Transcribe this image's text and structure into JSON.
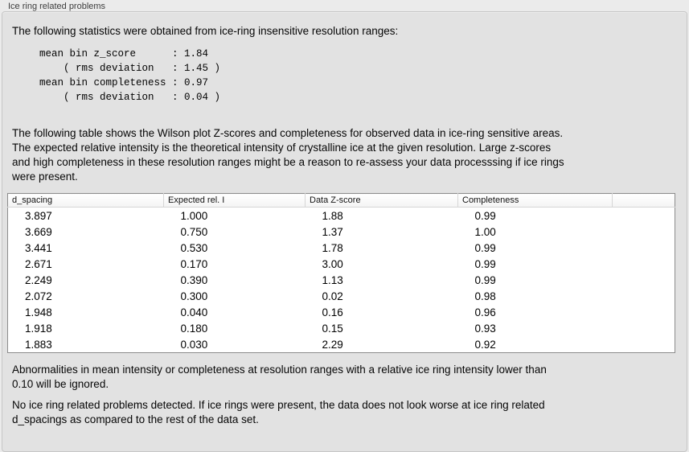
{
  "panel": {
    "title": "Ice ring related problems"
  },
  "intro": {
    "text": "The following statistics were obtained from ice-ring insensitive resolution ranges:",
    "stats_block": "mean bin z_score      : 1.84\n    ( rms deviation   : 1.45 )\nmean bin completeness : 0.97\n    ( rms deviation   : 0.04 )"
  },
  "description": "The following table shows the Wilson plot Z-scores and completeness for observed data in ice-ring sensitive areas.\nThe expected relative intensity is the theoretical intensity of crystalline ice at the given resolution. Large z-scores\nand high completeness in these resolution ranges might be a reason to re-assess your data processsing if ice rings\nwere present.",
  "table": {
    "columns": [
      "d_spacing",
      "Expected rel. I",
      "Data Z-score",
      "Completeness",
      ""
    ],
    "rows": [
      [
        "3.897",
        "1.000",
        "1.88",
        "0.99"
      ],
      [
        "3.669",
        "0.750",
        "1.37",
        "1.00"
      ],
      [
        "3.441",
        "0.530",
        "1.78",
        "0.99"
      ],
      [
        "2.671",
        "0.170",
        "3.00",
        "0.99"
      ],
      [
        "2.249",
        "0.390",
        "1.13",
        "0.99"
      ],
      [
        "2.072",
        "0.300",
        "0.02",
        "0.98"
      ],
      [
        "1.948",
        "0.040",
        "0.16",
        "0.96"
      ],
      [
        "1.918",
        "0.180",
        "0.15",
        "0.93"
      ],
      [
        "1.883",
        "0.030",
        "2.29",
        "0.92"
      ]
    ]
  },
  "notes": {
    "ignore_note": "Abnormalities in mean intensity or completeness at resolution ranges with a relative ice ring intensity lower than\n0.10 will be ignored.",
    "conclusion": "No ice ring related problems detected. If ice rings were present, the data does not look worse at ice ring related\nd_spacings as compared to the rest of the data set."
  }
}
